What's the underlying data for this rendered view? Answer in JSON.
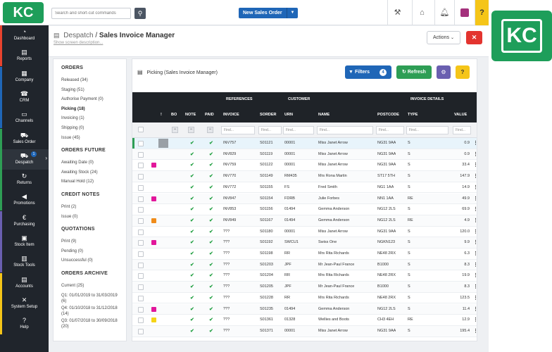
{
  "brand": {
    "logo_text": "KC",
    "badge_text": "KC",
    "accent": "#1e9e5a"
  },
  "topbar": {
    "search_placeholder": "Search and short-cut commands",
    "new_order_label": "New Sales Order",
    "help_label": "?"
  },
  "sidebar": {
    "items": [
      {
        "label": "Dashboard",
        "icon": "dashboard-icon",
        "glyph": "◔",
        "stripe": "#e8432e"
      },
      {
        "label": "Reports",
        "icon": "reports-icon",
        "glyph": "▤",
        "stripe": "#e8432e"
      },
      {
        "label": "Company",
        "icon": "company-icon",
        "glyph": "▦",
        "stripe": "#1f66b7"
      },
      {
        "label": "CRM",
        "icon": "phone-icon",
        "glyph": "☎",
        "stripe": "#1f66b7"
      },
      {
        "label": "Channels",
        "icon": "channels-icon",
        "glyph": "▭",
        "stripe": "#1f66b7"
      },
      {
        "label": "Sales Order",
        "icon": "cart-icon",
        "glyph": "⛟",
        "stripe": "#2e9e55"
      },
      {
        "label": "Despatch",
        "icon": "despatch-icon",
        "glyph": "⛟",
        "stripe": "#2e9e55",
        "badge": "1"
      },
      {
        "label": "Returns",
        "icon": "returns-icon",
        "glyph": "↻",
        "stripe": "#2e9e55"
      },
      {
        "label": "Promotions",
        "icon": "megaphone-icon",
        "glyph": "◀",
        "stripe": "#2e9e55"
      },
      {
        "label": "Purchasing",
        "icon": "purchasing-icon",
        "glyph": "€",
        "stripe": "#6a5fb0"
      },
      {
        "label": "Stock Item",
        "icon": "stock-item-icon",
        "glyph": "▣",
        "stripe": "#6a5fb0"
      },
      {
        "label": "Stock Tools",
        "icon": "stock-tools-icon",
        "glyph": "▥",
        "stripe": "#6a5fb0"
      },
      {
        "label": "Accounts",
        "icon": "accounts-icon",
        "glyph": "▤",
        "stripe": "#f5c518"
      },
      {
        "label": "System Setup",
        "icon": "tools-icon",
        "glyph": "✕",
        "stripe": "#f5c518"
      },
      {
        "label": "Help",
        "icon": "help-icon",
        "glyph": "?",
        "stripe": "#f5c518"
      }
    ]
  },
  "header": {
    "breadcrumb": "Despatch",
    "separator": "/",
    "title": "Sales Invoice Manager",
    "subtitle": "Show screen description...",
    "actions_label": "Actions",
    "close_label": "✕"
  },
  "filters_panel": {
    "sections": [
      {
        "title": "ORDERS",
        "items": [
          {
            "label": "Released (34)"
          },
          {
            "label": "Staging (51)"
          },
          {
            "label": "Authorise Payment (0)"
          },
          {
            "label": "Picking (18)",
            "active": true
          },
          {
            "label": "Invoicing (1)"
          },
          {
            "label": "Shipping (0)"
          },
          {
            "label": "Issue (45)"
          }
        ]
      },
      {
        "title": "ORDERS FUTURE",
        "items": [
          {
            "label": "Awaiting Date (0)"
          },
          {
            "label": "Awaiting Stock (24)"
          },
          {
            "label": "Manual Hold (12)"
          }
        ]
      },
      {
        "title": "CREDIT NOTES",
        "items": [
          {
            "label": "Print (2)"
          },
          {
            "label": "Issue (0)"
          }
        ]
      },
      {
        "title": "QUOTATIONS",
        "items": [
          {
            "label": "Print (9)"
          },
          {
            "label": "Pending (0)"
          },
          {
            "label": "Unsuccessful (0)"
          }
        ]
      },
      {
        "title": "ORDERS ARCHIVE",
        "items": [
          {
            "label": "Current (25)"
          },
          {
            "label": "Q1: 01/01/2019 to 31/03/2019 (6)"
          },
          {
            "label": "Q4: 01/10/2018 to 31/12/2018 (14)"
          },
          {
            "label": "Q3: 01/07/2018 to 30/09/2018 (20)"
          }
        ]
      }
    ]
  },
  "main": {
    "panel_title": "Picking (Sales Invoice Manager)",
    "filters_label": "Filters",
    "filters_count": "4",
    "refresh_label": "Refresh",
    "help_label": "?",
    "group_headers": {
      "references": "REFERENCES",
      "customer": "CUSTOMER",
      "invoice_details": "INVOICE DETAILS"
    },
    "columns": {
      "flag": "!",
      "bo": "BO",
      "note": "NOTE",
      "paid": "PAID",
      "invoice": "INVOICE",
      "sorder": "SORDER",
      "urn": "URN",
      "name": "NAME",
      "postcode": "POSTCODE",
      "type": "TYPE",
      "value": "VALUE"
    },
    "find_placeholder": "Find...",
    "minus": "−",
    "check_mark": "✔",
    "more_glyph": "⋮",
    "rows": [
      {
        "tag": "",
        "note": true,
        "paid": true,
        "invoice": "INV757",
        "sorder": "S01121",
        "urn": "00001",
        "name": "Miss Janet Arrow",
        "postcode": "NG31 9AA",
        "type": "S",
        "value": "0.9",
        "selected": true,
        "bo": true
      },
      {
        "tag": "",
        "note": true,
        "paid": true,
        "invoice": "INV829",
        "sorder": "S01119",
        "urn": "00001",
        "name": "Miss Janet Arrow",
        "postcode": "NG31 9AA",
        "type": "S",
        "value": "0.9"
      },
      {
        "tag": "#e2179b",
        "note": true,
        "paid": true,
        "invoice": "INV759",
        "sorder": "S01122",
        "urn": "00001",
        "name": "Miss Janet Arrow",
        "postcode": "NG31 9AA",
        "type": "S",
        "value": "33.4"
      },
      {
        "tag": "",
        "note": true,
        "paid": true,
        "invoice": "INV770",
        "sorder": "S01149",
        "urn": "RM435",
        "name": "Mrs Rona Martin",
        "postcode": "ST17 5TH",
        "type": "S",
        "value": "147.9"
      },
      {
        "tag": "",
        "note": true,
        "paid": true,
        "invoice": "INV772",
        "sorder": "S01155",
        "urn": "FS",
        "name": "Fred Smith",
        "postcode": "NG1 1AA",
        "type": "S",
        "value": "14.9"
      },
      {
        "tag": "#e2179b",
        "note": true,
        "paid": true,
        "invoice": "INV847",
        "sorder": "S01154",
        "urn": "FDRB",
        "name": "Julie Forbes",
        "postcode": "NN1 1AA",
        "type": "RE",
        "value": "49.9"
      },
      {
        "tag": "",
        "note": true,
        "paid": true,
        "invoice": "INV853",
        "sorder": "S01156",
        "urn": "01494",
        "name": "Gemma Anderson",
        "postcode": "NG12 2LS",
        "type": "S",
        "value": "69.9"
      },
      {
        "tag": "#f08c1a",
        "note": true,
        "paid": true,
        "invoice": "INV849",
        "sorder": "S01167",
        "urn": "01494",
        "name": "Gemma Anderson",
        "postcode": "NG12 2LS",
        "type": "RE",
        "value": "4.9"
      },
      {
        "tag": "",
        "note": true,
        "paid": true,
        "invoice": "???",
        "sorder": "S01180",
        "urn": "00001",
        "name": "Miss Janet Arrow",
        "postcode": "NG31 9AA",
        "type": "S",
        "value": "120.0"
      },
      {
        "tag": "#e2179b",
        "note": true,
        "paid": true,
        "invoice": "???",
        "sorder": "S01192",
        "urn": "SWCU1",
        "name": "Swiss One",
        "postcode": "NGKN123",
        "type": "S",
        "value": "9.9"
      },
      {
        "tag": "",
        "note": true,
        "paid": true,
        "invoice": "???",
        "sorder": "S01198",
        "urn": "RR",
        "name": "Mrs Rita Richards",
        "postcode": "NE48 2RX",
        "type": "S",
        "value": "6.3"
      },
      {
        "tag": "",
        "note": true,
        "paid": true,
        "invoice": "???",
        "sorder": "S01203",
        "urn": "JPF",
        "name": "Mr Jean-Paul France",
        "postcode": "B1000",
        "type": "S",
        "value": "8.3"
      },
      {
        "tag": "",
        "note": true,
        "paid": true,
        "invoice": "???",
        "sorder": "S01204",
        "urn": "RR",
        "name": "Mrs Rita Richards",
        "postcode": "NE48 2RX",
        "type": "S",
        "value": "19.9"
      },
      {
        "tag": "",
        "note": true,
        "paid": true,
        "invoice": "???",
        "sorder": "S01205",
        "urn": "JPF",
        "name": "Mr Jean-Paul France",
        "postcode": "B1000",
        "type": "S",
        "value": "8.3"
      },
      {
        "tag": "",
        "note": true,
        "paid": true,
        "invoice": "???",
        "sorder": "S01228",
        "urn": "RR",
        "name": "Mrs Rita Richards",
        "postcode": "NE48 2RX",
        "type": "S",
        "value": "123.5"
      },
      {
        "tag": "#e2179b",
        "note": true,
        "paid": true,
        "invoice": "???",
        "sorder": "S01235",
        "urn": "01494",
        "name": "Gemma Anderson",
        "postcode": "NG12 2LS",
        "type": "S",
        "value": "11.4"
      },
      {
        "tag": "#f5d416",
        "note": true,
        "paid": true,
        "invoice": "???",
        "sorder": "S01361",
        "urn": "01328",
        "name": "Wellies and Boots",
        "postcode": "CH3 4EH",
        "type": "RE",
        "value": "12.9"
      },
      {
        "tag": "",
        "note": true,
        "paid": true,
        "invoice": "???",
        "sorder": "S01371",
        "urn": "00001",
        "name": "Miss Janet Arrow",
        "postcode": "NG31 9AA",
        "type": "S",
        "value": "195.4"
      }
    ]
  }
}
